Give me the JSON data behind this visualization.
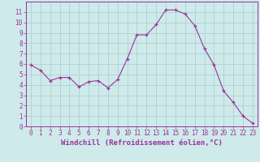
{
  "x": [
    0,
    1,
    2,
    3,
    4,
    5,
    6,
    7,
    8,
    9,
    10,
    11,
    12,
    13,
    14,
    15,
    16,
    17,
    18,
    19,
    20,
    21,
    22,
    23
  ],
  "y": [
    5.9,
    5.4,
    4.4,
    4.7,
    4.7,
    3.8,
    4.3,
    4.4,
    3.7,
    4.5,
    6.5,
    8.8,
    8.8,
    9.8,
    11.2,
    11.2,
    10.8,
    9.7,
    7.5,
    5.9,
    3.4,
    2.3,
    1.0,
    0.3
  ],
  "line_color": "#993399",
  "marker": "+",
  "marker_size": 3,
  "bg_color": "#ceeaea",
  "grid_color": "#aacccc",
  "xlabel": "Windchill (Refroidissement éolien,°C)",
  "ylim": [
    0,
    12
  ],
  "xlim": [
    -0.5,
    23.5
  ],
  "yticks": [
    0,
    1,
    2,
    3,
    4,
    5,
    6,
    7,
    8,
    9,
    10,
    11
  ],
  "xticks": [
    0,
    1,
    2,
    3,
    4,
    5,
    6,
    7,
    8,
    9,
    10,
    11,
    12,
    13,
    14,
    15,
    16,
    17,
    18,
    19,
    20,
    21,
    22,
    23
  ],
  "tick_label_fontsize": 5.5,
  "xlabel_fontsize": 6.5,
  "spine_color": "#993399",
  "linewidth": 0.8
}
